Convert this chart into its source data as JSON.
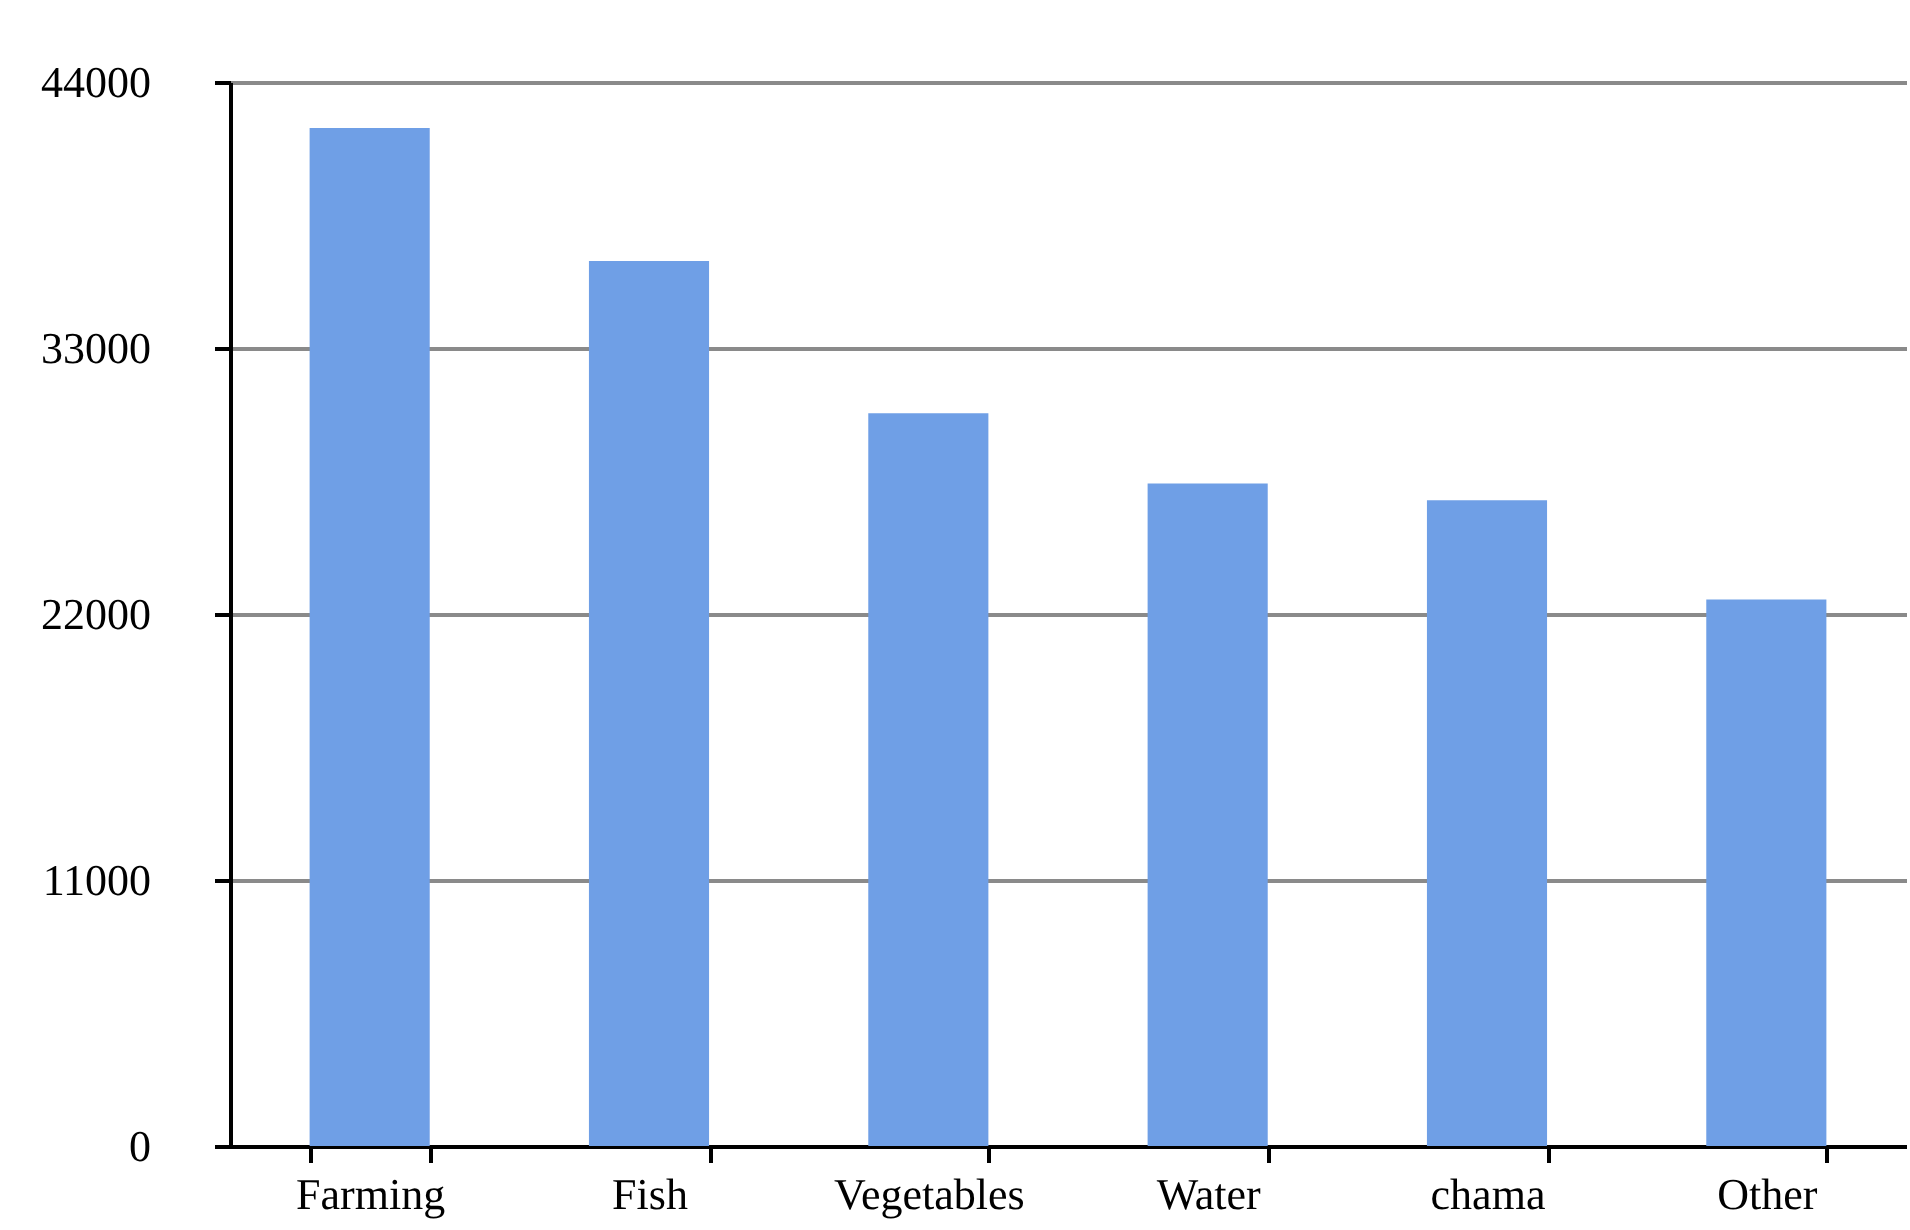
{
  "chart_data": {
    "type": "bar",
    "categories": [
      "Farming",
      "Fish",
      "Vegetables",
      "Water",
      "chama",
      "Other"
    ],
    "values": [
      42100,
      36600,
      30300,
      27400,
      26700,
      22600
    ],
    "color": "#6f9fe6",
    "ylim": [
      0,
      44000
    ],
    "yticks": [
      0,
      11000,
      22000,
      33000,
      44000
    ],
    "grid": "y"
  }
}
